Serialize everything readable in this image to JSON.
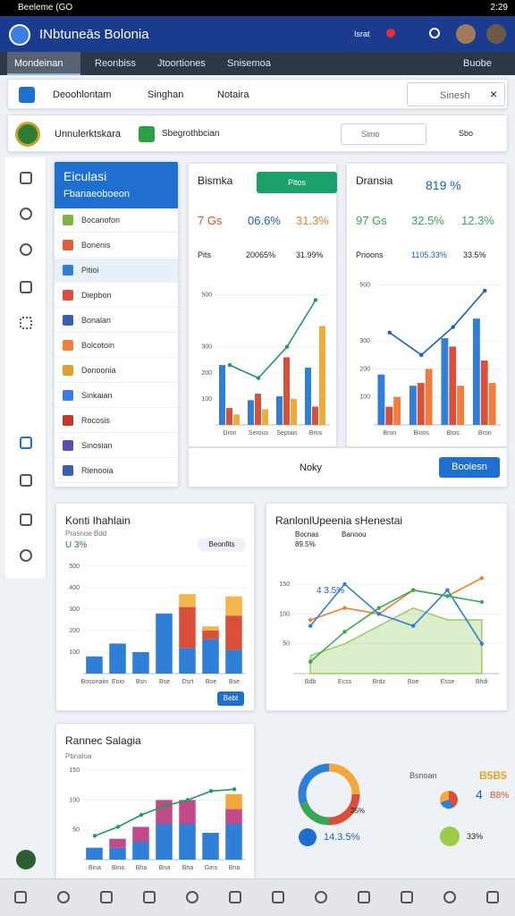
{
  "status_bar": {
    "left": "Beeleme (GO",
    "time": "2:29"
  },
  "app_bar": {
    "title": "INbtuneās Bolonia",
    "badge": "Israt"
  },
  "tabs": [
    "Mondeinan",
    "Reonbiss",
    "Jtoortiones",
    "Snisemoa"
  ],
  "tabs_right": "Buobe",
  "toolbar": {
    "items": [
      "Deoohlontam",
      "Singhan",
      "Notaira"
    ],
    "search": "Sinesh"
  },
  "subbar": {
    "left": "Unnulerktskara",
    "center": "Sbegrothbcian",
    "search": "Simo",
    "right": "Sbo"
  },
  "sidebar": {
    "title": "Eiculasi",
    "subtitle": "Fbanaeoboeon",
    "items": [
      "Bocanofon",
      "Bonenis",
      "Pitioi",
      "Diepbon",
      "Bonalan",
      "Bolcotoin",
      "Donoonia",
      "Sinkaian",
      "Rocosis",
      "Sinosian",
      "Rienooia"
    ]
  },
  "cards": [
    {
      "title": "Bismka",
      "button": "Pitos",
      "stats": [
        "7 Gs",
        "06.6%",
        "31.3%"
      ],
      "legend": [
        "Pits",
        "20065%",
        "31.99%"
      ],
      "chart": {
        "ylim": [
          0,
          550
        ],
        "yticks": [
          100,
          200,
          300,
          500
        ],
        "categories": [
          "Dron",
          "Serous",
          "Septais",
          "Bros"
        ],
        "series": [
          {
            "kind": "bar",
            "color": "#2f7fd8",
            "values": [
              230,
              95,
              110,
              220
            ]
          },
          {
            "kind": "bar",
            "color": "#d9503a",
            "values": [
              65,
              120,
              260,
              70
            ]
          },
          {
            "kind": "bar",
            "color": "#f2a93b",
            "values": [
              40,
              60,
              100,
              380
            ]
          },
          {
            "kind": "line",
            "color": "#1f9c5a",
            "values": [
              230,
              180,
              300,
              480
            ]
          }
        ]
      }
    },
    {
      "title": "Dransia",
      "badge": "819 %",
      "stats": [
        "97 Gs",
        "32.5%",
        "12.3%"
      ],
      "legend": [
        "Prioons",
        "1105.33%",
        "33.5%"
      ],
      "chart": {
        "ylim": [
          0,
          550
        ],
        "yticks": [
          100,
          200,
          300,
          500
        ],
        "categories": [
          "Bron",
          "Bioos",
          "Btos",
          "Bron"
        ],
        "series": [
          {
            "kind": "bar",
            "color": "#2f7fd8",
            "values": [
              180,
              140,
              310,
              380
            ]
          },
          {
            "kind": "bar",
            "color": "#d9503a",
            "values": [
              65,
              150,
              280,
              230
            ]
          },
          {
            "kind": "bar",
            "color": "#f07d3b",
            "values": [
              100,
              200,
              140,
              150
            ]
          },
          {
            "kind": "line",
            "color": "#1c5fb8",
            "values": [
              330,
              250,
              350,
              480
            ]
          }
        ]
      }
    },
    {
      "title": "Konti Ihahlain",
      "subtitle": "Prasnoe Bdd",
      "badge": "U 3%",
      "pill": "Beonfits",
      "button": "Bebt",
      "chart": {
        "stack": true,
        "ylim": [
          0,
          500
        ],
        "yticks": [
          100,
          200,
          300,
          400,
          500
        ],
        "categories": [
          "Bosonaiin",
          "Eoio",
          "Bsn",
          "Bse",
          "Dsrt",
          "Boe",
          "Bse"
        ],
        "series": [
          {
            "kind": "bar",
            "color": "#2f7fd8",
            "values": [
              80,
              140,
              100,
              280,
              120,
              160,
              110
            ]
          },
          {
            "kind": "bar",
            "color": "#d9503a",
            "values": [
              0,
              0,
              0,
              0,
              190,
              40,
              160
            ]
          },
          {
            "kind": "bar",
            "color": "#f2b64c",
            "values": [
              0,
              0,
              0,
              0,
              60,
              20,
              90
            ]
          }
        ]
      }
    },
    {
      "title": "RanlonlUpeenia sHenestai",
      "legend": [
        "Bocnas",
        "Banoou"
      ],
      "badge": "89.5%",
      "annotation": "4 3.5%",
      "chart": {
        "ylim": [
          0,
          180
        ],
        "yticks": [
          50,
          100,
          150
        ],
        "categories": [
          "Bdb",
          "Ecss",
          "Brdz",
          "Boe",
          "Esse",
          "Bhdi"
        ],
        "series": [
          {
            "kind": "area",
            "color": "#9ccc65",
            "values": [
              30,
              50,
              80,
              110,
              90,
              90
            ]
          },
          {
            "kind": "line",
            "color": "#e8822f",
            "values": [
              90,
              110,
              100,
              140,
              130,
              160
            ]
          },
          {
            "kind": "line",
            "color": "#2f7fd8",
            "values": [
              80,
              150,
              100,
              80,
              140,
              50
            ]
          },
          {
            "kind": "line",
            "color": "#3aa655",
            "values": [
              20,
              70,
              110,
              140,
              130,
              120
            ]
          }
        ]
      }
    },
    {
      "title": "Rannec Salagia",
      "subtitle": "Pbnaloa",
      "chart": {
        "stack": true,
        "ylim": [
          0,
          150
        ],
        "yticks": [
          50,
          100,
          150
        ],
        "categories": [
          "Bina",
          "Bina",
          "Bha",
          "Bna",
          "Bha",
          "Gins",
          "Bna"
        ],
        "series": [
          {
            "kind": "bar",
            "color": "#2f7fd8",
            "values": [
              20,
              20,
              30,
              60,
              60,
              45,
              60
            ]
          },
          {
            "kind": "bar",
            "color": "#c04a8a",
            "values": [
              0,
              15,
              25,
              40,
              40,
              0,
              25
            ]
          },
          {
            "kind": "bar",
            "color": "#f2a93b",
            "values": [
              0,
              0,
              0,
              0,
              0,
              0,
              25
            ]
          },
          {
            "kind": "line",
            "color": "#1f9c5a",
            "values": [
              40,
              55,
              75,
              90,
              100,
              115,
              118
            ]
          }
        ]
      }
    }
  ],
  "footer": {
    "label": "Noky",
    "button": "Booiesn"
  },
  "donut": {
    "values": [
      25,
      25,
      20,
      30
    ],
    "colors": [
      "#f2a93b",
      "#d9503a",
      "#3aa655",
      "#2f7fd8"
    ],
    "pill": "14.3.5%",
    "label": "35%"
  },
  "summary": {
    "title": "Bsnoan",
    "value": "B5B5",
    "count": "4",
    "percent": "B8%",
    "pill": "33%"
  }
}
